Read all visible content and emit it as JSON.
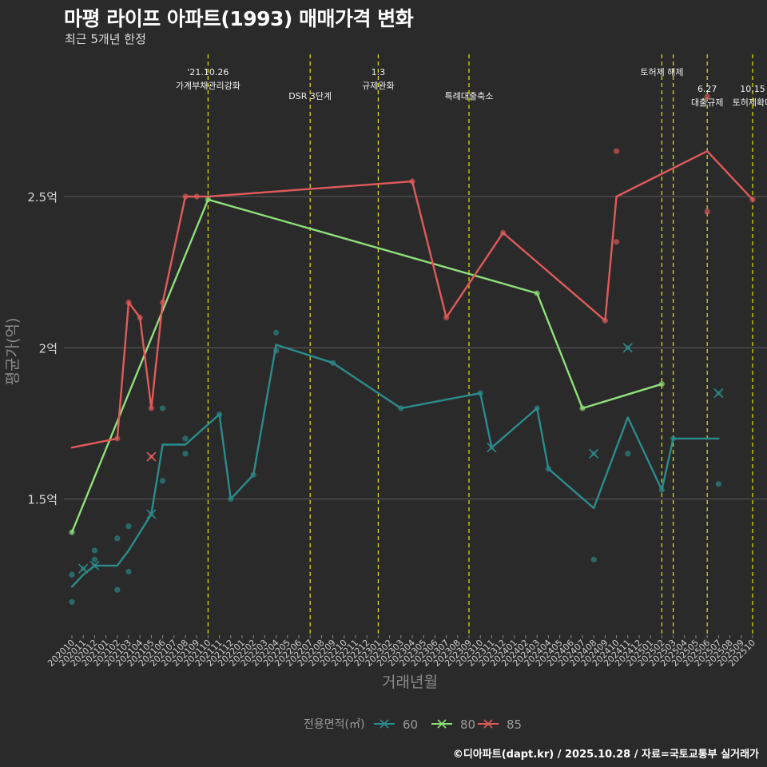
{
  "chart_data": {
    "type": "line",
    "title": "마평 라이프 아파트(1993) 매매가격 변화",
    "subtitle": "최근 5개년 한정",
    "xlabel": "거래년월",
    "ylabel": "평균가(억)",
    "caption": "©디아파트(dapt.kr) / 2025.10.28 / 자료=국토교통부 실거래가",
    "legend_title": "전용면적(㎡)",
    "legend_position": "bottom",
    "ylim": [
      1.05,
      2.97
    ],
    "y_ticks": [
      {
        "value": 1.5,
        "label": "1.5억"
      },
      {
        "value": 2.0,
        "label": "2억"
      },
      {
        "value": 2.5,
        "label": "2.5억"
      }
    ],
    "categories": [
      "202010",
      "202011",
      "202012",
      "202101",
      "202102",
      "202103",
      "202104",
      "202105",
      "202106",
      "202107",
      "202108",
      "202109",
      "202110",
      "202111",
      "202112",
      "202201",
      "202202",
      "202203",
      "202204",
      "202205",
      "202206",
      "202207",
      "202208",
      "202209",
      "202210",
      "202211",
      "202212",
      "202301",
      "202302",
      "202303",
      "202304",
      "202305",
      "202306",
      "202307",
      "202308",
      "202309",
      "202310",
      "202311",
      "202312",
      "202401",
      "202402",
      "202403",
      "202404",
      "202405",
      "202406",
      "202407",
      "202408",
      "202409",
      "202410",
      "202411",
      "202412",
      "202501",
      "202502",
      "202503",
      "202504",
      "202505",
      "202506",
      "202507",
      "202508",
      "202509",
      "202510"
    ],
    "events": [
      {
        "month": "202110",
        "lines": [
          "'21.10.26",
          "가계부채관리강화"
        ],
        "row": 1
      },
      {
        "month": "202207",
        "lines": [
          "DSR 3단계"
        ],
        "row": 2
      },
      {
        "month": "202301",
        "lines": [
          "1.3",
          "규제완화"
        ],
        "row": 1
      },
      {
        "month": "202309",
        "lines": [
          "특례대출축소"
        ],
        "row": 2
      },
      {
        "month": "202502",
        "lines": [
          "토허제 해제"
        ],
        "row": 1
      },
      {
        "month": "202503",
        "lines": [],
        "row": 0
      },
      {
        "month": "202506",
        "lines": [
          "6.27",
          "대출규제"
        ],
        "row": 3
      },
      {
        "month": "202510",
        "lines": [
          "10.15",
          "토허제확대"
        ],
        "row": 3
      }
    ],
    "series": [
      {
        "name": "60",
        "color": "#2a8c8c",
        "line": [
          {
            "x": "202010",
            "y": 1.21
          },
          {
            "x": "202011",
            "y": 1.25
          },
          {
            "x": "202012",
            "y": 1.28
          },
          {
            "x": "202101",
            "y": 1.28
          },
          {
            "x": "202102",
            "y": 1.28
          },
          {
            "x": "202103",
            "y": 1.33
          },
          {
            "x": "202104",
            "y": 1.39
          },
          {
            "x": "202105",
            "y": 1.45
          },
          {
            "x": "202106",
            "y": 1.68
          },
          {
            "x": "202108",
            "y": 1.68
          },
          {
            "x": "202111",
            "y": 1.78
          },
          {
            "x": "202112",
            "y": 1.5
          },
          {
            "x": "202202",
            "y": 1.58
          },
          {
            "x": "202204",
            "y": 2.01
          },
          {
            "x": "202209",
            "y": 1.95
          },
          {
            "x": "202303",
            "y": 1.8
          },
          {
            "x": "202310",
            "y": 1.85
          },
          {
            "x": "202311",
            "y": 1.67
          },
          {
            "x": "202403",
            "y": 1.8
          },
          {
            "x": "202404",
            "y": 1.6
          },
          {
            "x": "202408",
            "y": 1.47
          },
          {
            "x": "202411",
            "y": 1.77
          },
          {
            "x": "202502",
            "y": 1.53
          },
          {
            "x": "202503",
            "y": 1.7
          },
          {
            "x": "202507",
            "y": 1.7
          }
        ],
        "points": [
          {
            "x": "202010",
            "y": 1.25
          },
          {
            "x": "202010",
            "y": 1.16
          },
          {
            "x": "202012",
            "y": 1.33
          },
          {
            "x": "202012",
            "y": 1.3
          },
          {
            "x": "202102",
            "y": 1.2
          },
          {
            "x": "202102",
            "y": 1.37
          },
          {
            "x": "202103",
            "y": 1.41
          },
          {
            "x": "202103",
            "y": 1.26
          },
          {
            "x": "202106",
            "y": 1.8
          },
          {
            "x": "202106",
            "y": 1.56
          },
          {
            "x": "202108",
            "y": 1.7
          },
          {
            "x": "202108",
            "y": 1.65
          },
          {
            "x": "202111",
            "y": 1.78
          },
          {
            "x": "202112",
            "y": 1.5
          },
          {
            "x": "202202",
            "y": 1.58
          },
          {
            "x": "202204",
            "y": 2.05
          },
          {
            "x": "202204",
            "y": 1.99
          },
          {
            "x": "202209",
            "y": 1.95
          },
          {
            "x": "202303",
            "y": 1.8
          },
          {
            "x": "202310",
            "y": 1.85
          },
          {
            "x": "202403",
            "y": 1.8
          },
          {
            "x": "202404",
            "y": 1.6
          },
          {
            "x": "202408",
            "y": 1.3
          },
          {
            "x": "202411",
            "y": 1.65
          },
          {
            "x": "202502",
            "y": 1.53
          },
          {
            "x": "202503",
            "y": 1.7
          },
          {
            "x": "202507",
            "y": 1.55
          }
        ],
        "crosses": [
          {
            "x": "202011",
            "y": 1.27
          },
          {
            "x": "202012",
            "y": 1.28
          },
          {
            "x": "202105",
            "y": 1.45
          },
          {
            "x": "202311",
            "y": 1.67
          },
          {
            "x": "202408",
            "y": 1.65
          },
          {
            "x": "202411",
            "y": 2.0
          },
          {
            "x": "202507",
            "y": 1.85
          }
        ]
      },
      {
        "name": "80",
        "color": "#8ee07a",
        "line": [
          {
            "x": "202010",
            "y": 1.39
          },
          {
            "x": "202110",
            "y": 2.49
          },
          {
            "x": "202403",
            "y": 2.18
          },
          {
            "x": "202407",
            "y": 1.8
          },
          {
            "x": "202502",
            "y": 1.88
          }
        ],
        "points": [
          {
            "x": "202010",
            "y": 1.39
          },
          {
            "x": "202110",
            "y": 2.49
          },
          {
            "x": "202403",
            "y": 2.18
          },
          {
            "x": "202407",
            "y": 1.8
          },
          {
            "x": "202502",
            "y": 1.88
          }
        ],
        "crosses": []
      },
      {
        "name": "85",
        "color": "#e05a5a",
        "line": [
          {
            "x": "202010",
            "y": 1.67
          },
          {
            "x": "202102",
            "y": 1.7
          },
          {
            "x": "202103",
            "y": 2.15
          },
          {
            "x": "202104",
            "y": 2.1
          },
          {
            "x": "202105",
            "y": 1.8
          },
          {
            "x": "202106",
            "y": 2.15
          },
          {
            "x": "202108",
            "y": 2.5
          },
          {
            "x": "202109",
            "y": 2.5
          },
          {
            "x": "202110",
            "y": 2.5
          },
          {
            "x": "202304",
            "y": 2.55
          },
          {
            "x": "202307",
            "y": 2.1
          },
          {
            "x": "202312",
            "y": 2.38
          },
          {
            "x": "202409",
            "y": 2.09
          },
          {
            "x": "202410",
            "y": 2.5
          },
          {
            "x": "202506",
            "y": 2.65
          },
          {
            "x": "202510",
            "y": 2.49
          }
        ],
        "points": [
          {
            "x": "202102",
            "y": 1.7
          },
          {
            "x": "202103",
            "y": 2.15
          },
          {
            "x": "202104",
            "y": 2.1
          },
          {
            "x": "202105",
            "y": 1.8
          },
          {
            "x": "202106",
            "y": 2.15
          },
          {
            "x": "202108",
            "y": 2.5
          },
          {
            "x": "202109",
            "y": 2.5
          },
          {
            "x": "202304",
            "y": 2.55
          },
          {
            "x": "202307",
            "y": 2.1
          },
          {
            "x": "202312",
            "y": 2.38
          },
          {
            "x": "202409",
            "y": 2.09
          },
          {
            "x": "202410",
            "y": 2.65
          },
          {
            "x": "202410",
            "y": 2.35
          },
          {
            "x": "202506",
            "y": 2.45
          },
          {
            "x": "202506",
            "y": 2.83
          },
          {
            "x": "202510",
            "y": 2.49
          }
        ],
        "crosses": [
          {
            "x": "202105",
            "y": 1.64
          }
        ]
      }
    ]
  }
}
